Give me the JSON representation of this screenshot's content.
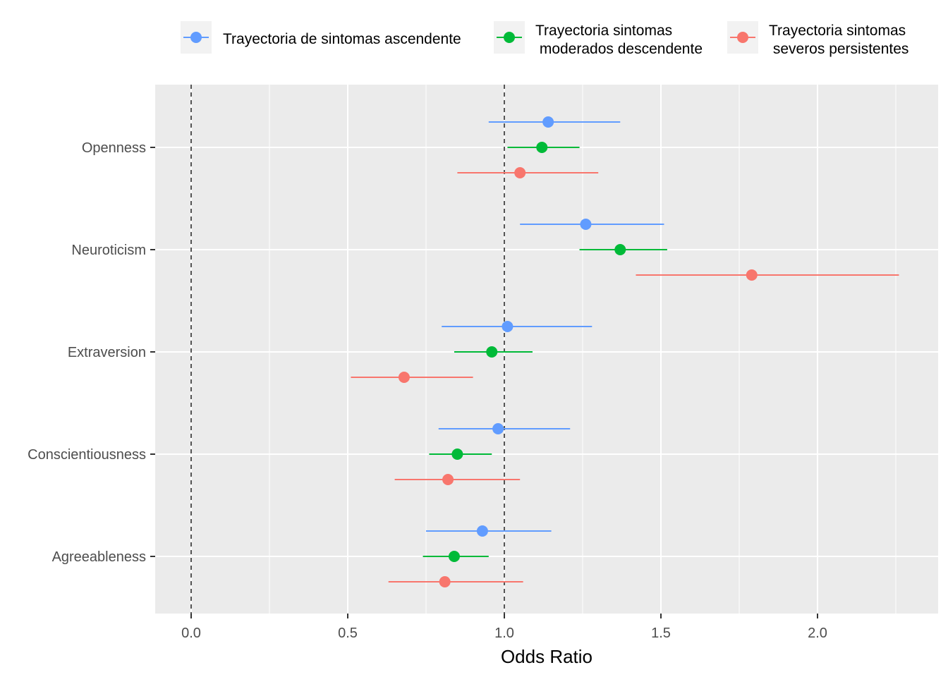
{
  "chart_data": {
    "type": "scatter",
    "subtype": "forest-plot-with-error-bars",
    "xlabel": "Odds Ratio",
    "ylabel": "",
    "xlim": [
      -0.11,
      2.38
    ],
    "x_ticks": [
      0.0,
      0.5,
      1.0,
      1.5,
      2.0
    ],
    "x_tick_labels": [
      "0.0",
      "0.5",
      "1.0",
      "1.5",
      "2.0"
    ],
    "reference_lines": [
      0,
      1
    ],
    "categories": [
      "Openness",
      "Neuroticism",
      "Extraversion",
      "Conscientiousness",
      "Agreeableness"
    ],
    "legend_position": "top",
    "grid": true,
    "series": [
      {
        "name": "Trayectoria de sintomas ascendente",
        "color": "#619CFF",
        "points": [
          {
            "category": "Openness",
            "or": 1.14,
            "lo": 0.95,
            "hi": 1.37
          },
          {
            "category": "Neuroticism",
            "or": 1.26,
            "lo": 1.05,
            "hi": 1.51
          },
          {
            "category": "Extraversion",
            "or": 1.01,
            "lo": 0.8,
            "hi": 1.28
          },
          {
            "category": "Conscientiousness",
            "or": 0.98,
            "lo": 0.79,
            "hi": 1.21
          },
          {
            "category": "Agreeableness",
            "or": 0.93,
            "lo": 0.75,
            "hi": 1.15
          }
        ]
      },
      {
        "name": "Trayectoria sintomas\n moderados descendente",
        "color": "#00BA38",
        "points": [
          {
            "category": "Openness",
            "or": 1.12,
            "lo": 1.01,
            "hi": 1.24
          },
          {
            "category": "Neuroticism",
            "or": 1.37,
            "lo": 1.24,
            "hi": 1.52
          },
          {
            "category": "Extraversion",
            "or": 0.96,
            "lo": 0.84,
            "hi": 1.09
          },
          {
            "category": "Conscientiousness",
            "or": 0.85,
            "lo": 0.76,
            "hi": 0.96
          },
          {
            "category": "Agreeableness",
            "or": 0.84,
            "lo": 0.74,
            "hi": 0.95
          }
        ]
      },
      {
        "name": "Trayectoria sintomas\n severos persistentes",
        "color": "#F8766D",
        "points": [
          {
            "category": "Openness",
            "or": 1.05,
            "lo": 0.85,
            "hi": 1.3
          },
          {
            "category": "Neuroticism",
            "or": 1.79,
            "lo": 1.42,
            "hi": 2.26
          },
          {
            "category": "Extraversion",
            "or": 0.68,
            "lo": 0.51,
            "hi": 0.9
          },
          {
            "category": "Conscientiousness",
            "or": 0.82,
            "lo": 0.65,
            "hi": 1.05
          },
          {
            "category": "Agreeableness",
            "or": 0.81,
            "lo": 0.63,
            "hi": 1.06
          }
        ]
      }
    ]
  }
}
